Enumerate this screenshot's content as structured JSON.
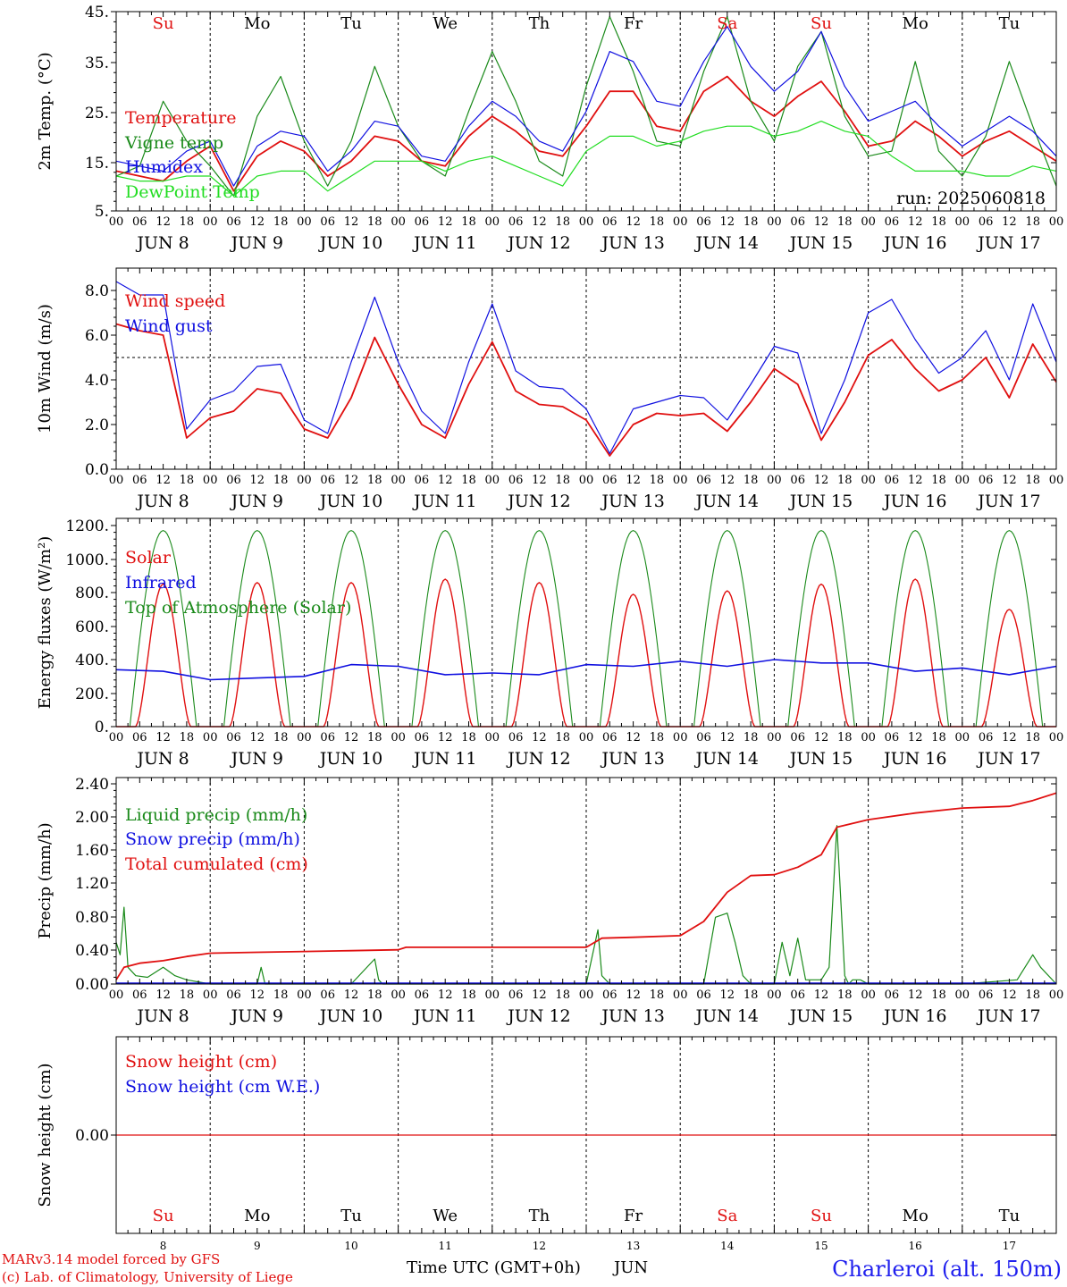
{
  "days": {
    "weekdays": [
      "Su",
      "Mo",
      "Tu",
      "We",
      "Th",
      "Fr",
      "Sa",
      "Su",
      "Mo",
      "Tu"
    ],
    "weekday_colors": [
      "#e01010",
      "#000000",
      "#000000",
      "#000000",
      "#000000",
      "#000000",
      "#e01010",
      "#e01010",
      "#000000",
      "#000000"
    ],
    "dates": [
      "JUN  8",
      "JUN  9",
      "JUN 10",
      "JUN 11",
      "JUN 12",
      "JUN 13",
      "JUN 14",
      "JUN 15",
      "JUN 16",
      "JUN 17"
    ],
    "day_numbers": [
      "8",
      "9",
      "10",
      "11",
      "12",
      "13",
      "14",
      "15",
      "16",
      "17"
    ],
    "hour_ticks": [
      "00",
      "06",
      "12",
      "18"
    ],
    "final_hour": "00"
  },
  "colors": {
    "red": "#e01010",
    "green": "#1a8a1a",
    "blue": "#1010e0",
    "lime": "#22dd22"
  },
  "footer": {
    "model": "MARv3.14 model forced by GFS",
    "lab": "(c) Lab. of Climatology, University of Liege",
    "xlabel": "Time UTC (GMT+0h)",
    "month": "JUN",
    "station": "Charleroi (alt. 150m)"
  },
  "chart_data": [
    {
      "type": "line",
      "ylabel": "2m Temp. (°C)",
      "ylim": [
        5,
        45
      ],
      "yticks": [
        "45.",
        "35.",
        "25.",
        "15.",
        "5."
      ],
      "annotation": "run: 2025060818",
      "legend": [
        "Temperature",
        "Vigne temp",
        "Humidex",
        "DewPoint Temp"
      ],
      "x_hours": [
        0,
        6,
        12,
        18,
        24,
        30,
        36,
        42,
        48,
        54,
        60,
        66,
        72,
        78,
        84,
        90,
        96,
        102,
        108,
        114,
        120,
        126,
        132,
        138,
        144,
        150,
        156,
        162,
        168,
        174,
        180,
        186,
        192,
        198,
        204,
        210,
        216,
        222,
        228,
        234,
        240
      ],
      "series": [
        {
          "name": "Temperature",
          "color": "red",
          "values": [
            13,
            12,
            11,
            15,
            18,
            9,
            16,
            19,
            17,
            12,
            15,
            20,
            19,
            15,
            14,
            20,
            24,
            21,
            17,
            16,
            22,
            29,
            29,
            22,
            21,
            29,
            32,
            27,
            24,
            28,
            31,
            25,
            18,
            19,
            23,
            20,
            16,
            19,
            21,
            18,
            15
          ]
        },
        {
          "name": "Vigne temp",
          "color": "green",
          "values": [
            12,
            14,
            27,
            19,
            14,
            8,
            24,
            32,
            19,
            10,
            19,
            34,
            22,
            15,
            12,
            25,
            37,
            27,
            15,
            12,
            30,
            44,
            33,
            19,
            18,
            33,
            44,
            27,
            19,
            34,
            41,
            24,
            16,
            17,
            35,
            17,
            12,
            20,
            35,
            22,
            10
          ]
        },
        {
          "name": "Humidex",
          "color": "blue",
          "values": [
            15,
            14,
            13,
            17,
            19,
            10,
            18,
            21,
            20,
            13,
            17,
            23,
            22,
            16,
            15,
            22,
            27,
            24,
            19,
            17,
            25,
            37,
            35,
            27,
            26,
            35,
            42,
            34,
            29,
            33,
            41,
            30,
            23,
            25,
            27,
            22,
            18,
            21,
            24,
            21,
            16
          ]
        },
        {
          "name": "DewPoint Temp",
          "color": "lime",
          "values": [
            12,
            11,
            11,
            12,
            12,
            8,
            12,
            13,
            13,
            9,
            12,
            15,
            15,
            15,
            13,
            15,
            16,
            14,
            12,
            10,
            17,
            20,
            20,
            18,
            19,
            21,
            22,
            22,
            20,
            21,
            23,
            21,
            20,
            16,
            13,
            13,
            13,
            12,
            12,
            14,
            13
          ]
        }
      ]
    },
    {
      "type": "line",
      "ylabel": "10m Wind (m/s)",
      "ylim": [
        0,
        9
      ],
      "yticks": [
        "8.0",
        "6.0",
        "4.0",
        "2.0",
        "0.0"
      ],
      "reference_line": 5,
      "legend": [
        "Wind speed",
        "Wind gust"
      ],
      "x_hours": [
        0,
        6,
        12,
        18,
        24,
        30,
        36,
        42,
        48,
        54,
        60,
        66,
        72,
        78,
        84,
        90,
        96,
        102,
        108,
        114,
        120,
        126,
        132,
        138,
        144,
        150,
        156,
        162,
        168,
        174,
        180,
        186,
        192,
        198,
        204,
        210,
        216,
        222,
        228,
        234,
        240
      ],
      "series": [
        {
          "name": "Wind speed",
          "color": "red",
          "values": [
            6.5,
            6.2,
            6.0,
            1.4,
            2.3,
            2.6,
            3.6,
            3.4,
            1.8,
            1.4,
            3.2,
            5.9,
            3.8,
            2.0,
            1.4,
            3.8,
            5.7,
            3.5,
            2.9,
            2.8,
            2.2,
            0.6,
            2.0,
            2.5,
            2.4,
            2.5,
            1.7,
            3.0,
            4.5,
            3.8,
            1.3,
            3.0,
            5.1,
            5.8,
            4.5,
            3.5,
            4.0,
            5.0,
            3.2,
            5.6,
            3.9
          ]
        },
        {
          "name": "Wind gust",
          "color": "blue",
          "values": [
            8.4,
            7.8,
            7.8,
            1.8,
            3.1,
            3.5,
            4.6,
            4.7,
            2.2,
            1.6,
            4.8,
            7.7,
            4.8,
            2.6,
            1.6,
            4.8,
            7.4,
            4.4,
            3.7,
            3.6,
            2.7,
            0.7,
            2.7,
            3.0,
            3.3,
            3.2,
            2.2,
            3.8,
            5.5,
            5.2,
            1.6,
            4.0,
            7.0,
            7.6,
            5.8,
            4.3,
            5.0,
            6.2,
            4.0,
            7.4,
            4.8
          ]
        }
      ]
    },
    {
      "type": "line",
      "ylabel": "Energy fluxes (W/m²)",
      "ylim": [
        0,
        1250
      ],
      "yticks": [
        "1200.",
        "1000.",
        "800.",
        "600.",
        "400.",
        "200.",
        "0."
      ],
      "legend": [
        "Solar",
        "Infrared",
        "Top of Atmosphere (Solar)"
      ],
      "daily_peaks": {
        "toa": [
          1170,
          1170,
          1170,
          1170,
          1170,
          1170,
          1170,
          1170,
          1170,
          1170
        ],
        "solar": [
          850,
          860,
          860,
          880,
          860,
          790,
          810,
          850,
          880,
          700
        ]
      },
      "series": [
        {
          "name": "Infrared",
          "color": "blue",
          "x_hours": [
            0,
            12,
            24,
            36,
            48,
            60,
            72,
            84,
            96,
            108,
            120,
            132,
            144,
            156,
            168,
            180,
            192,
            204,
            216,
            228,
            240
          ],
          "values": [
            340,
            330,
            280,
            290,
            300,
            370,
            360,
            310,
            320,
            310,
            370,
            360,
            390,
            360,
            400,
            380,
            380,
            330,
            350,
            310,
            360
          ]
        }
      ]
    },
    {
      "type": "line",
      "ylabel": "Precip (mm/h)",
      "ylim": [
        0,
        2.4
      ],
      "yticks": [
        "2.40",
        "2.00",
        "1.60",
        "1.20",
        "0.80",
        "0.40",
        "0.00"
      ],
      "legend": [
        "Liquid precip (mm/h)",
        "Snow precip (mm/h)",
        "Total cumulated (cm)"
      ],
      "series": [
        {
          "name": "Liquid precip (mm/h)",
          "color": "green",
          "x_hours": [
            0,
            1,
            2,
            3,
            5,
            8,
            12,
            15,
            18,
            24,
            36,
            37,
            38,
            60,
            66,
            67,
            68,
            120,
            123,
            124,
            126,
            150,
            153,
            156,
            158,
            160,
            162,
            168,
            170,
            172,
            174,
            176,
            180,
            182,
            184,
            186,
            187,
            188,
            190,
            192,
            200,
            216,
            230,
            234,
            236,
            240
          ],
          "values": [
            0.5,
            0.35,
            0.92,
            0.2,
            0.1,
            0.08,
            0.2,
            0.1,
            0.05,
            0,
            0,
            0.2,
            0,
            0,
            0.3,
            0.05,
            0,
            0,
            0.65,
            0.1,
            0,
            0,
            0.8,
            0.85,
            0.5,
            0.1,
            0,
            0,
            0.5,
            0.1,
            0.55,
            0.05,
            0.05,
            0.2,
            1.9,
            0.1,
            0,
            0.05,
            0.05,
            0,
            0,
            0,
            0.05,
            0.35,
            0.2,
            0
          ]
        },
        {
          "name": "Total cumulated (cm)",
          "color": "red",
          "x_hours": [
            0,
            2,
            6,
            12,
            18,
            24,
            36,
            48,
            60,
            72,
            74,
            84,
            96,
            108,
            120,
            124,
            132,
            144,
            150,
            156,
            162,
            168,
            174,
            180,
            184,
            192,
            204,
            216,
            228,
            234,
            240
          ],
          "values": [
            0.05,
            0.2,
            0.25,
            0.28,
            0.33,
            0.37,
            0.38,
            0.39,
            0.4,
            0.41,
            0.44,
            0.44,
            0.44,
            0.44,
            0.44,
            0.55,
            0.56,
            0.58,
            0.75,
            1.1,
            1.3,
            1.31,
            1.4,
            1.55,
            1.88,
            1.97,
            2.05,
            2.11,
            2.13,
            2.2,
            2.29
          ]
        }
      ]
    },
    {
      "type": "line",
      "ylabel": "Snow height (cm)",
      "yticks": [
        "0.00"
      ],
      "legend": [
        "Snow height (cm)",
        "Snow height (cm W.E.)"
      ],
      "series": [
        {
          "name": "Snow height (cm)",
          "color": "red",
          "x_hours": [
            0,
            240
          ],
          "values": [
            0,
            0
          ]
        }
      ]
    }
  ]
}
